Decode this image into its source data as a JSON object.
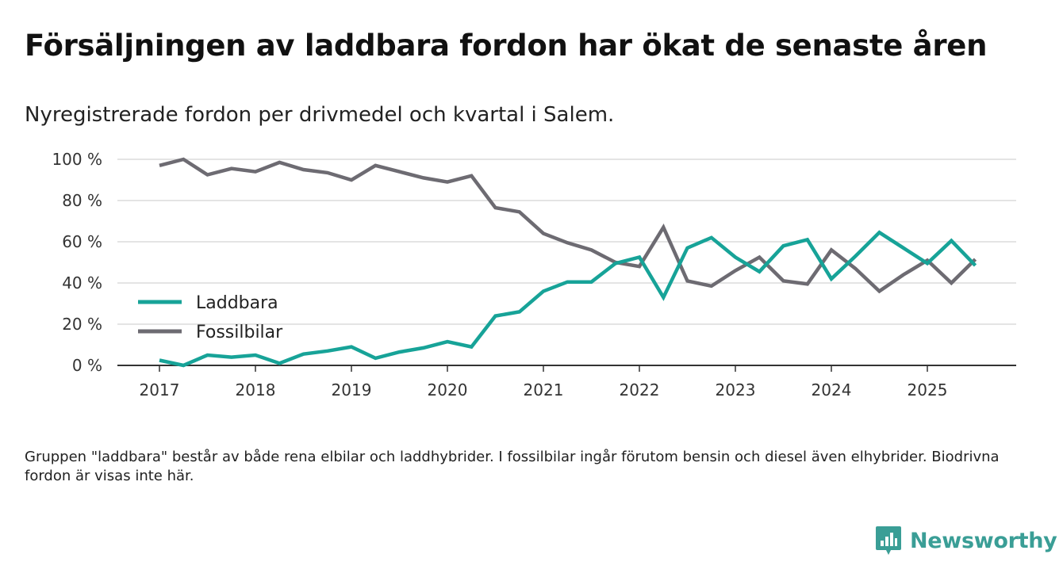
{
  "title": "Försäljningen av laddbara fordon har ökat de senaste åren",
  "subtitle": "Nyregistrerade fordon per drivmedel och kvartal i Salem.",
  "footnote": "Gruppen \"laddbara\" består av både rena elbilar och laddhybrider. I fossilbilar ingår förutom bensin och diesel även elhybrider. Biodrivna fordon är visas inte här.",
  "brand": {
    "name": "Newsworthy",
    "icon": "newsworthy-logo-icon",
    "color": "#3a9e96"
  },
  "chart_data": {
    "type": "line",
    "title": "Nyregistrerade fordon per drivmedel och kvartal i Salem.",
    "xlabel": "",
    "ylabel": "",
    "ylim": [
      0,
      100
    ],
    "grid": true,
    "legend_position": "left-middle",
    "y_ticks": [
      0,
      20,
      40,
      60,
      80,
      100
    ],
    "y_tick_labels": [
      "0 %",
      "20 %",
      "40 %",
      "60 %",
      "80 %",
      "100 %"
    ],
    "x_ticks": [
      2017,
      2018,
      2019,
      2020,
      2021,
      2022,
      2023,
      2024,
      2025
    ],
    "x_tick_labels": [
      "2017",
      "2018",
      "2019",
      "2020",
      "2021",
      "2022",
      "2023",
      "2024",
      "2025"
    ],
    "x": [
      2017.0,
      2017.25,
      2017.5,
      2017.75,
      2018.0,
      2018.25,
      2018.5,
      2018.75,
      2019.0,
      2019.25,
      2019.5,
      2019.75,
      2020.0,
      2020.25,
      2020.5,
      2020.75,
      2021.0,
      2021.25,
      2021.5,
      2021.75,
      2022.0,
      2022.25,
      2022.5,
      2022.75,
      2023.0,
      2023.25,
      2023.5,
      2023.75,
      2024.0,
      2024.25,
      2024.5,
      2024.75,
      2025.0,
      2025.25,
      2025.5
    ],
    "series": [
      {
        "name": "Laddbara",
        "color": "#17a398",
        "values": [
          2.5,
          0,
          5,
          4,
          5,
          1,
          5.5,
          7,
          9,
          3.5,
          6.5,
          8.5,
          11.5,
          9,
          24,
          26,
          36,
          40.5,
          40.5,
          49.5,
          52.5,
          33,
          57,
          62,
          52.5,
          45.5,
          58,
          61,
          42,
          53,
          64.5,
          57,
          49.5,
          60.5,
          48.5
        ]
      },
      {
        "name": "Fossilbilar",
        "color": "#6d6b72",
        "values": [
          97,
          100,
          92.5,
          95.5,
          94,
          98.5,
          95,
          93.5,
          90,
          97,
          94,
          91,
          89,
          92,
          76.5,
          74.5,
          64,
          59.5,
          56,
          50,
          48,
          67,
          41,
          38.5,
          46,
          52.5,
          41,
          39.5,
          56,
          47,
          36,
          44,
          51,
          40,
          51.5
        ]
      }
    ]
  }
}
